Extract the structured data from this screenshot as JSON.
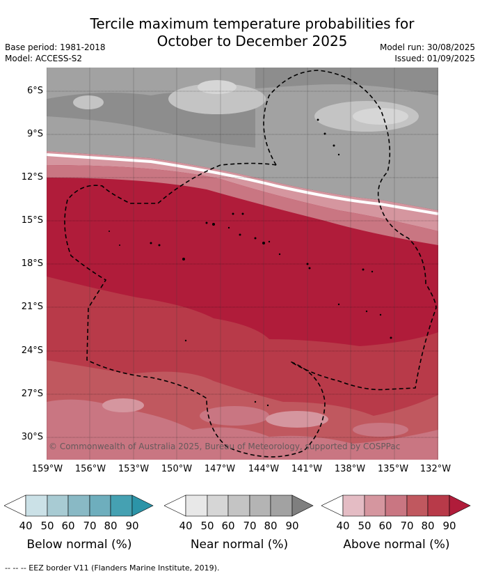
{
  "title_line1": "Tercile maximum temperature probabilities for",
  "title_line2": "October to December 2025",
  "base_period": "Base period: 1981-2018",
  "model": "Model: ACCESS-S2",
  "model_run": "Model run: 30/08/2025",
  "issued": "Issued: 01/09/2025",
  "lat_labels": [
    "6°S",
    "9°S",
    "12°S",
    "15°S",
    "18°S",
    "21°S",
    "24°S",
    "27°S",
    "30°S"
  ],
  "lon_labels": [
    "159°W",
    "156°W",
    "153°W",
    "150°W",
    "147°W",
    "144°W",
    "141°W",
    "138°W",
    "135°W",
    "132°W"
  ],
  "copyright": "© Commonwealth of Australia 2025, Bureau of Meteorology, supported by COSPPac",
  "colorbars": [
    {
      "title": "Below normal (%)",
      "ticks": [
        "40",
        "50",
        "60",
        "70",
        "80",
        "90"
      ],
      "colors": [
        "#ffffff",
        "#cbe1e7",
        "#a8cbd3",
        "#89b9c5",
        "#6eaebd",
        "#45a1b2",
        "#2c94a8"
      ]
    },
    {
      "title": "Near normal (%)",
      "ticks": [
        "40",
        "50",
        "60",
        "70",
        "80",
        "90"
      ],
      "colors": [
        "#ffffff",
        "#e8e8e8",
        "#d6d6d6",
        "#c4c4c4",
        "#b4b4b4",
        "#a2a2a2",
        "#7f7f7f"
      ]
    },
    {
      "title": "Above normal (%)",
      "ticks": [
        "40",
        "50",
        "60",
        "70",
        "80",
        "90"
      ],
      "colors": [
        "#ffffff",
        "#e4bcc4",
        "#d5969f",
        "#c97682",
        "#c0585f",
        "#b83a49",
        "#b01c3a"
      ]
    }
  ],
  "eez_note": "-- -- -- EEZ border V11 (Flanders Marine Institute, 2019)."
}
